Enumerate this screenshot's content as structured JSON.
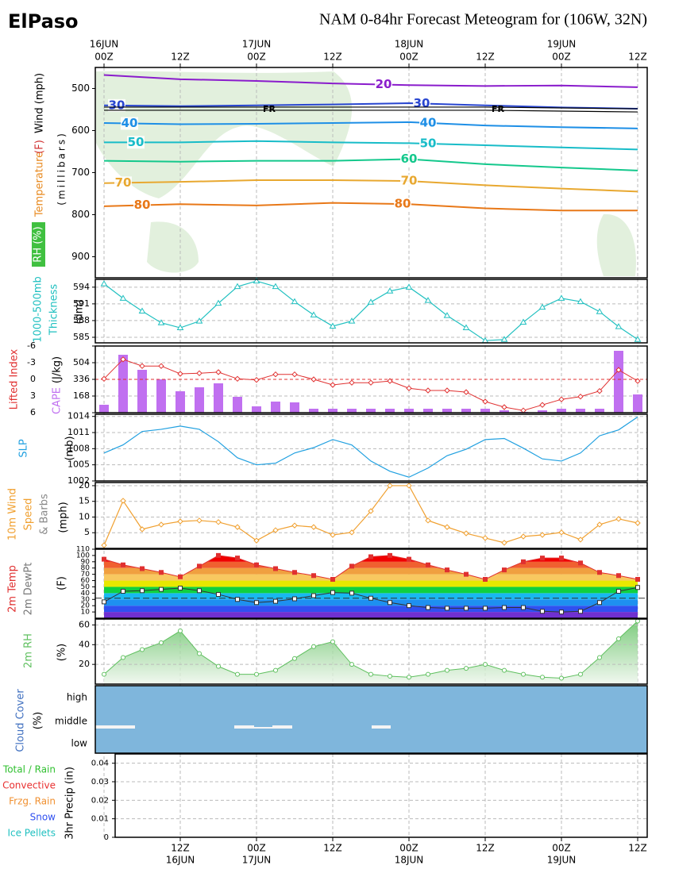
{
  "header": {
    "location": "ElPaso",
    "title": "NAM 0-84hr Forecast Meteogram for (106W, 32N)"
  },
  "time_axis": {
    "top_ticks": [
      0,
      12,
      24,
      36,
      48,
      60,
      72,
      84
    ],
    "top_labels": [
      "00Z",
      "12Z",
      "00Z",
      "12Z",
      "00Z",
      "12Z",
      "00Z",
      "12Z"
    ],
    "top_dates": [
      "16JUN",
      null,
      "17JUN",
      null,
      "18JUN",
      null,
      "19JUN",
      null
    ],
    "bottom_ticks": [
      12,
      24,
      36,
      48,
      60,
      72,
      84
    ],
    "bottom_labels": [
      "12Z",
      "00Z",
      "12Z",
      "00Z",
      "12Z",
      "00Z",
      "12Z"
    ],
    "bottom_dates": [
      "16JUN",
      "17JUN",
      null,
      "18JUN",
      null,
      "19JUN",
      null
    ]
  },
  "chart_data": [
    {
      "type": "contour",
      "ylabels": [
        "Temperature",
        "(F)",
        "Wind (mph)",
        "(millibars)",
        "RH (%)"
      ],
      "x": [
        0,
        12,
        24,
        36,
        48,
        60,
        72,
        84
      ],
      "ylim": [
        950,
        450
      ],
      "yticks": [
        500,
        600,
        700,
        800,
        900
      ],
      "series": [
        {
          "name": "20",
          "color": "#8a1ccc",
          "values": [
            468,
            478,
            482,
            488,
            492,
            494,
            493,
            497
          ]
        },
        {
          "name": "30",
          "color": "#2845d0",
          "values": [
            540,
            542,
            540,
            538,
            535,
            540,
            545,
            548
          ]
        },
        {
          "name": "40",
          "color": "#1e8fe6",
          "values": [
            582,
            585,
            584,
            582,
            580,
            588,
            592,
            595
          ]
        },
        {
          "name": "50",
          "color": "#18bcc8",
          "values": [
            628,
            628,
            625,
            628,
            630,
            635,
            640,
            645
          ]
        },
        {
          "name": "60",
          "color": "#14c88c",
          "values": [
            672,
            674,
            672,
            672,
            668,
            680,
            688,
            695
          ]
        },
        {
          "name": "70",
          "color": "#e8a830",
          "values": [
            725,
            722,
            718,
            718,
            720,
            730,
            738,
            745
          ]
        },
        {
          "name": "80",
          "color": "#e87818",
          "values": [
            780,
            775,
            778,
            772,
            775,
            785,
            790,
            790
          ]
        }
      ],
      "freezing_level": [
        548,
        548,
        548,
        548,
        548,
        548,
        550,
        552
      ],
      "freezing_labels": [
        "FR",
        "FR"
      ]
    },
    {
      "type": "line",
      "ylabels": [
        "1000-500mb",
        "Thickness",
        "(dm)"
      ],
      "marker": "triangle",
      "color": "#20c0c0",
      "grid": true,
      "x": [
        0,
        3,
        6,
        9,
        12,
        15,
        18,
        21,
        24,
        27,
        30,
        33,
        36,
        39,
        42,
        45,
        48,
        51,
        54,
        57,
        60,
        63,
        66,
        69,
        72,
        75,
        78,
        81,
        84
      ],
      "values": [
        594.6,
        592,
        589.7,
        587.6,
        586.7,
        587.9,
        591.1,
        594.1,
        595.1,
        594.1,
        591.4,
        589,
        587,
        587.9,
        591.3,
        593.3,
        594,
        591.6,
        588.9,
        586.7,
        584.4,
        584.6,
        587.7,
        590.4,
        592,
        591.4,
        589.6,
        586.9,
        584.6
      ],
      "ylim": [
        584,
        595.4
      ],
      "yticks": [
        585,
        588,
        591,
        594
      ]
    },
    {
      "type": "bar_line",
      "y2label": "(J/kg)",
      "reference_line": 0,
      "x": [
        0,
        3,
        6,
        9,
        12,
        15,
        18,
        21,
        24,
        27,
        30,
        33,
        36,
        39,
        42,
        45,
        48,
        51,
        54,
        57,
        60,
        63,
        66,
        69,
        72,
        75,
        78,
        81,
        84
      ],
      "series": [
        {
          "name": "Lifted Index",
          "color": "#e03030",
          "axis": "y",
          "values": [
            -0.1,
            -3.6,
            -2.4,
            -2.4,
            -1,
            -1.1,
            -1.3,
            -0.1,
            0.1,
            -0.9,
            -0.9,
            0,
            1,
            0.6,
            0.6,
            0.3,
            1.6,
            2,
            2,
            2.3,
            4,
            5,
            5.6,
            4.6,
            3.6,
            3.1,
            2.1,
            -1.7,
            0.3
          ]
        },
        {
          "name": "CAPE",
          "color": "#c070f0",
          "axis": "y2",
          "values": [
            80,
            584,
            432,
            336,
            216,
            256,
            296,
            160,
            64,
            112,
            104,
            40,
            40,
            40,
            40,
            40,
            40,
            40,
            40,
            40,
            40,
            24,
            8,
            24,
            40,
            40,
            40,
            624,
            184
          ]
        }
      ],
      "ylim": [
        6,
        -6
      ],
      "yticks": [
        -6,
        -3,
        0,
        3,
        6
      ],
      "y2lim": [
        0,
        672
      ],
      "y2ticks": [
        168,
        336,
        504
      ]
    },
    {
      "type": "line",
      "ylabels": [
        "SLP",
        "(mb)"
      ],
      "marker": "none",
      "color": "#20a0e0",
      "grid": true,
      "x": [
        0,
        3,
        6,
        9,
        12,
        15,
        18,
        21,
        24,
        27,
        30,
        33,
        36,
        39,
        42,
        45,
        48,
        51,
        54,
        57,
        60,
        63,
        66,
        69,
        72,
        75,
        78,
        81,
        84
      ],
      "values": [
        1007.2,
        1008.7,
        1011.2,
        1011.6,
        1012.2,
        1011.6,
        1009.3,
        1006.3,
        1005,
        1005.3,
        1007.2,
        1008.2,
        1009.7,
        1008.7,
        1005.7,
        1003.8,
        1002.7,
        1004.4,
        1006.7,
        1007.9,
        1009.7,
        1009.9,
        1008.1,
        1006.1,
        1005.7,
        1007.2,
        1010.4,
        1011.5,
        1013.9
      ],
      "ylim": [
        1002,
        1014.4
      ],
      "yticks": [
        1002,
        1005,
        1008,
        1011,
        1014
      ]
    },
    {
      "type": "line",
      "ylabels": [
        "10m Wind",
        "Speed",
        "& Barbs",
        "(mph)"
      ],
      "marker": "diamond",
      "color": "#f0a030",
      "grid": true,
      "x": [
        0,
        3,
        6,
        9,
        12,
        15,
        18,
        21,
        24,
        27,
        30,
        33,
        36,
        39,
        42,
        45,
        48,
        51,
        54,
        57,
        60,
        63,
        66,
        69,
        72,
        75,
        78,
        81,
        84
      ],
      "values": [
        1,
        15.2,
        6.1,
        7.6,
        8.6,
        8.9,
        8.4,
        6.8,
        2.5,
        5.8,
        7.3,
        6.8,
        4.3,
        5.1,
        11.9,
        20,
        20,
        8.9,
        6.8,
        4.8,
        3.3,
        1.8,
        3.8,
        4.3,
        5.1,
        2.8,
        7.6,
        9.4,
        8.1
      ],
      "ylim": [
        0,
        21
      ],
      "yticks": [
        5,
        10,
        15,
        20
      ]
    },
    {
      "type": "temp",
      "ylabels": [
        "(F)"
      ],
      "reference_line": 32,
      "x": [
        0,
        3,
        6,
        9,
        12,
        15,
        18,
        21,
        24,
        27,
        30,
        33,
        36,
        39,
        42,
        45,
        48,
        51,
        54,
        57,
        60,
        63,
        66,
        69,
        72,
        75,
        78,
        81,
        84
      ],
      "series": [
        {
          "name": "2m Temp",
          "color": "#e03030",
          "values": [
            94,
            85,
            79,
            73,
            66,
            83,
            100,
            96,
            85,
            79,
            73,
            68,
            62,
            83,
            98,
            100,
            94,
            85,
            77,
            70,
            62,
            77,
            90,
            96,
            96,
            88,
            73,
            68,
            62
          ]
        },
        {
          "name": "2m DewPt",
          "color": "#333333",
          "values": [
            26,
            43,
            44,
            46,
            48,
            44,
            38,
            30,
            25,
            27,
            31,
            36,
            41,
            40,
            32,
            25,
            20,
            17,
            16,
            16,
            16,
            17,
            17,
            11,
            10,
            11,
            25,
            43,
            49
          ]
        }
      ],
      "ylim": [
        0,
        110
      ],
      "yticks": [
        10,
        20,
        30,
        40,
        50,
        60,
        70,
        80,
        90,
        100,
        110
      ]
    },
    {
      "type": "area",
      "ylabels": [
        "2m RH",
        "(%)"
      ],
      "color": "#60c060",
      "grid": true,
      "x": [
        0,
        3,
        6,
        9,
        12,
        15,
        18,
        21,
        24,
        27,
        30,
        33,
        36,
        39,
        42,
        45,
        48,
        51,
        54,
        57,
        60,
        63,
        66,
        69,
        72,
        75,
        78,
        81,
        84
      ],
      "values": [
        10,
        27,
        35,
        42,
        54,
        31,
        18,
        10,
        10,
        14,
        26,
        38,
        43,
        20,
        10,
        8,
        7,
        10,
        14,
        16,
        20,
        14,
        10,
        7,
        6,
        10,
        27,
        46,
        64
      ],
      "ylim": [
        0,
        66
      ],
      "yticks": [
        20,
        40,
        60
      ]
    },
    {
      "type": "cloud",
      "ylabels": [
        "Cloud Cover",
        "(%)"
      ],
      "categories": [
        "high",
        "middle",
        "low"
      ],
      "color": "#7fb6dc"
    },
    {
      "type": "precip",
      "ylabels": [
        "3hr Precip (in)"
      ],
      "grid": true,
      "ylim": [
        0,
        0.045
      ],
      "yticks": [
        0,
        0.01,
        0.02,
        0.03,
        0.04
      ],
      "legend": [
        {
          "name": "Total / Rain",
          "color": "#30c030"
        },
        {
          "name": "Convective",
          "color": "#e83030"
        },
        {
          "name": "Frzg. Rain",
          "color": "#f09030"
        },
        {
          "name": "Snow",
          "color": "#3050f0"
        },
        {
          "name": "Ice Pellets",
          "color": "#20c0c0"
        }
      ]
    }
  ]
}
